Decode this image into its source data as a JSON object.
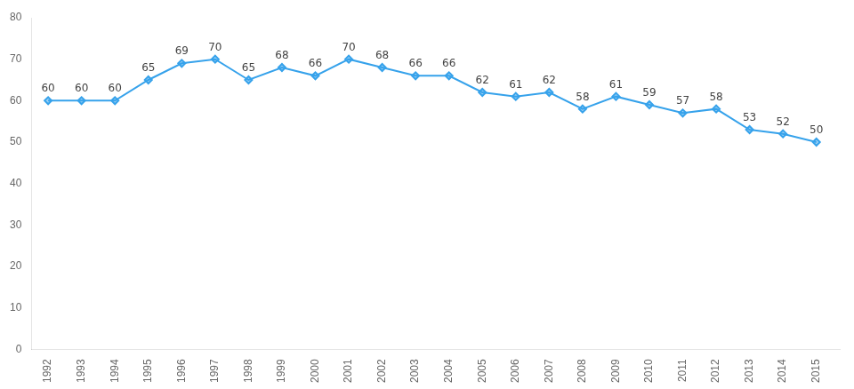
{
  "chart_data": {
    "type": "line",
    "x": [
      1992,
      1993,
      1994,
      1995,
      1996,
      1997,
      1998,
      1999,
      2000,
      2001,
      2002,
      2003,
      2004,
      2005,
      2006,
      2007,
      2008,
      2009,
      2010,
      2011,
      2012,
      2013,
      2014,
      2015
    ],
    "values": [
      60,
      60,
      60,
      65,
      69,
      70,
      65,
      68,
      66,
      70,
      68,
      66,
      66,
      62,
      61,
      62,
      58,
      61,
      59,
      57,
      58,
      53,
      52,
      50
    ],
    "xlim": [
      1991.5,
      2015.7
    ],
    "xticks": [
      1992,
      1993,
      1994,
      1995,
      1996,
      1997,
      1998,
      1999,
      2000,
      2001,
      2002,
      2003,
      2004,
      2005,
      2006,
      2007,
      2008,
      2009,
      2010,
      2011,
      2012,
      2013,
      2014,
      2015
    ],
    "ylim": [
      0,
      80
    ],
    "yticks": [
      0,
      10,
      20,
      30,
      40,
      50,
      60,
      70,
      80
    ],
    "grid": false,
    "data_labels": true,
    "marker": "diamond"
  }
}
